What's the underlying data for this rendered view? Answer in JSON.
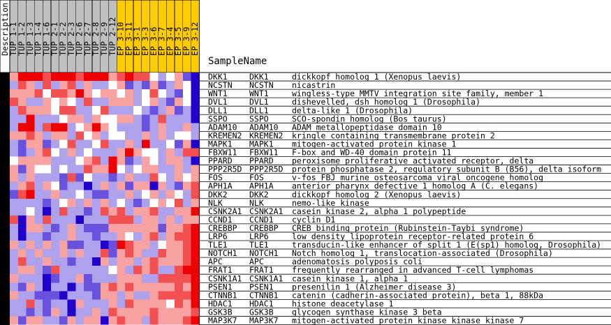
{
  "colors": {
    "header_group_1": "#c0c0c0",
    "header_group_2": "#ffcc00",
    "description_bar": "#000000",
    "grid_line": "#000000",
    "low": "#2200cc",
    "high": "#ee0000",
    "mid": "#ffffff"
  },
  "header": {
    "description_label": "Description",
    "sample_name_label": "SampleName"
  },
  "chart_data": {
    "type": "heatmap",
    "columns": [
      {
        "label": "TUP 1-1",
        "group": 1
      },
      {
        "label": "TUP 1-2",
        "group": 1
      },
      {
        "label": "TUP 1-3",
        "group": 1
      },
      {
        "label": "TUP 1-4",
        "group": 1
      },
      {
        "label": "TUP 1-6",
        "group": 1
      },
      {
        "label": "TUP 2-1",
        "group": 1
      },
      {
        "label": "TUP 2-2",
        "group": 1
      },
      {
        "label": "TUP 2-3",
        "group": 1
      },
      {
        "label": "TUP 2-6",
        "group": 1
      },
      {
        "label": "TUP 2-7",
        "group": 1
      },
      {
        "label": "TUP 2-8",
        "group": 1
      },
      {
        "label": "TUP 2-9",
        "group": 1
      },
      {
        "label": "TUP 2-12",
        "group": 1
      },
      {
        "label": "EP 3-10",
        "group": 2
      },
      {
        "label": "EP 3-11",
        "group": 2
      },
      {
        "label": "EP 3-1",
        "group": 2
      },
      {
        "label": "EP 3-3",
        "group": 2
      },
      {
        "label": "EP 3-6",
        "group": 2
      },
      {
        "label": "EP 3-7",
        "group": 2
      },
      {
        "label": "EP 3-4",
        "group": 2
      },
      {
        "label": "EP 3-5",
        "group": 2
      },
      {
        "label": "EP 3-9",
        "group": 2
      },
      {
        "label": "EP 3-12",
        "group": 2
      }
    ],
    "rows": [
      {
        "id": "DKK1",
        "symbol": "DKK1",
        "desc": "dickkopf homolog 1 (Xenopus laevis)"
      },
      {
        "id": "NCSTN",
        "symbol": "NCSTN",
        "desc": "nicastrin"
      },
      {
        "id": "WNT1",
        "symbol": "WNT1",
        "desc": "wingless-type MMTV integration site family, member 1"
      },
      {
        "id": "DVL1",
        "symbol": "DVL1",
        "desc": "dishevelled, dsh homolog 1 (Drosophila)"
      },
      {
        "id": "DLL1",
        "symbol": "DLL1",
        "desc": "delta-like 1 (Drosophila)"
      },
      {
        "id": "SSPO",
        "symbol": "SSPO",
        "desc": "SCO-spondin homolog (Bos taurus)"
      },
      {
        "id": "ADAM10",
        "symbol": "ADAM10",
        "desc": "ADAM metallopeptidase domain 10"
      },
      {
        "id": "KREMEN2",
        "symbol": "KREMEN2",
        "desc": "kringle containing transmembrane protein 2"
      },
      {
        "id": "MAPK1",
        "symbol": "MAPK1",
        "desc": "mitogen-activated protein kinase 1"
      },
      {
        "id": "FBXW11",
        "symbol": "FBXW11",
        "desc": "F-box and WD-40 domain protein 11"
      },
      {
        "id": "PPARD",
        "symbol": "PPARD",
        "desc": "peroxisome proliferative activated receptor, delta"
      },
      {
        "id": "PPP2R5D",
        "symbol": "PPP2R5D",
        "desc": "protein phosphatase 2, regulatory subunit B (B56), delta isoform"
      },
      {
        "id": "FOS",
        "symbol": "FOS",
        "desc": "v-fos FBJ murine osteosarcoma viral oncogene homolog"
      },
      {
        "id": "APH1A",
        "symbol": "APH1A",
        "desc": "anterior pharynx defective 1 homolog A (C. elegans)"
      },
      {
        "id": "DKK2",
        "symbol": "DKK2",
        "desc": "dickkopf homolog 2 (Xenopus laevis)"
      },
      {
        "id": "NLK",
        "symbol": "NLK",
        "desc": "nemo-like kinase"
      },
      {
        "id": "CSNK2A1",
        "symbol": "CSNK2A1",
        "desc": "casein kinase 2, alpha 1 polypeptide"
      },
      {
        "id": "CCND1",
        "symbol": "CCND1",
        "desc": "cyclin D1"
      },
      {
        "id": "CREBBP",
        "symbol": "CREBBP",
        "desc": "CREB binding protein (Rubinstein-Taybi syndrome)"
      },
      {
        "id": "LRP6",
        "symbol": "LRP6",
        "desc": "low density lipoprotein receptor-related protein 6"
      },
      {
        "id": "TLE1",
        "symbol": "TLE1",
        "desc": "transducin-like enhancer of split 1 (E(sp1) homolog, Drosophila)"
      },
      {
        "id": "NOTCH1",
        "symbol": "NOTCH1",
        "desc": "Notch homolog 1, translocation-associated (Drosophila)"
      },
      {
        "id": "APC",
        "symbol": "APC",
        "desc": "adenomatosis polyposis coli"
      },
      {
        "id": "FRAT1",
        "symbol": "FRAT1",
        "desc": "frequently rearranged in advanced T-cell lymphomas"
      },
      {
        "id": "CSNK1A1",
        "symbol": "CSNK1A1",
        "desc": "casein kinase 1, alpha 1"
      },
      {
        "id": "PSEN1",
        "symbol": "PSEN1",
        "desc": "presenilin 1 (Alzheimer disease 3)"
      },
      {
        "id": "CTNNB1",
        "symbol": "CTNNB1",
        "desc": "catenin (cadherin-associated protein), beta 1, 88kDa"
      },
      {
        "id": "HDAC1",
        "symbol": "HDAC1",
        "desc": "histone deacetylase 1"
      },
      {
        "id": "GSK3B",
        "symbol": "GSK3B",
        "desc": "glycogen synthase kinase 3 beta"
      },
      {
        "id": "MAP3K7",
        "symbol": "MAP3K7",
        "desc": "mitogen-activated protein kinase kinase kinase 7"
      }
    ],
    "value_range": [
      -3,
      3
    ],
    "values": [
      [
        1,
        3,
        3,
        3,
        2,
        3,
        3,
        3,
        2,
        3,
        3,
        3,
        1,
        2,
        3,
        2,
        2,
        0,
        -1,
        0,
        1,
        -2,
        -3
      ],
      [
        -1,
        2,
        1,
        -1,
        2,
        -1,
        1,
        2,
        -1,
        1,
        -1,
        -1,
        0,
        1,
        -2,
        -1,
        -2,
        1,
        -2,
        -1,
        1,
        0,
        -3
      ],
      [
        1,
        1,
        1,
        2,
        0,
        2,
        2,
        1,
        3,
        1,
        0,
        1,
        1,
        0,
        1,
        -1,
        0,
        2,
        0,
        -1,
        -2,
        0,
        -3
      ],
      [
        2,
        1,
        -1,
        -1,
        1,
        0,
        1,
        0,
        -1,
        2,
        -1,
        -1,
        1,
        1,
        1,
        -1,
        0,
        1,
        -1,
        -2,
        1,
        0,
        -3
      ],
      [
        -1,
        2,
        1,
        1,
        1,
        0,
        2,
        2,
        -1,
        -1,
        0,
        2,
        -1,
        -1,
        -1,
        0,
        -1,
        -2,
        -1,
        1,
        -2,
        -1,
        -3
      ],
      [
        -1,
        -1,
        3,
        -1,
        -1,
        -1,
        0,
        1,
        1,
        -1,
        1,
        0,
        0,
        1,
        1,
        -1,
        -2,
        -1,
        2,
        -1,
        -1,
        -1,
        -3
      ],
      [
        -1,
        3,
        3,
        -1,
        2,
        3,
        3,
        -1,
        0,
        1,
        3,
        1,
        0,
        -1,
        -1,
        -1,
        -2,
        -1,
        1,
        -1,
        -1,
        1,
        -1
      ],
      [
        1,
        1,
        2,
        1,
        -1,
        1,
        1,
        -1,
        2,
        0,
        1,
        -1,
        0,
        0,
        -1,
        -1,
        1,
        -1,
        1,
        -1,
        0,
        0,
        -1
      ],
      [
        -1,
        -2,
        1,
        1,
        -2,
        -1,
        0,
        2,
        -1,
        -1,
        0,
        2,
        -1,
        -1,
        1,
        -1,
        3,
        -1,
        -1,
        0,
        -2,
        1,
        -3
      ],
      [
        -1,
        -2,
        -1,
        1,
        2,
        0,
        -1,
        1,
        -1,
        0,
        -1,
        -1,
        -1,
        1,
        3,
        1,
        0,
        0,
        -1,
        1,
        -1,
        2,
        2
      ],
      [
        0,
        1,
        1,
        1,
        1,
        -1,
        -1,
        -1,
        0,
        1,
        2,
        -1,
        3,
        1,
        -2,
        -1,
        1,
        0,
        -1,
        1,
        1,
        -1,
        -3
      ],
      [
        1,
        -2,
        1,
        0,
        0,
        -1,
        0,
        -1,
        -1,
        2,
        1,
        1,
        3,
        0,
        -1,
        0,
        1,
        1,
        -1,
        -1,
        1,
        -1,
        1
      ],
      [
        1,
        -1,
        1,
        -1,
        -1,
        -1,
        -2,
        2,
        -2,
        0,
        -1,
        -1,
        -2,
        -1,
        1,
        -1,
        -1,
        2,
        0,
        -1,
        1,
        0,
        1
      ],
      [
        -1,
        1,
        2,
        -1,
        1,
        0,
        -2,
        -1,
        -1,
        -3,
        -1,
        1,
        -1,
        1,
        -2,
        1,
        1,
        -3,
        1,
        -1,
        -2,
        1,
        2
      ],
      [
        -2,
        2,
        3,
        -1,
        -1,
        1,
        -1,
        -1,
        0,
        -1,
        -2,
        -2,
        -1,
        -1,
        1,
        -1,
        0,
        1,
        -1,
        1,
        0,
        -1,
        2
      ],
      [
        -1,
        -1,
        -1,
        -1,
        -2,
        -1,
        0,
        1,
        -1,
        1,
        -1,
        1,
        -1,
        0,
        -1,
        -2,
        -1,
        0,
        1,
        0,
        2,
        -1,
        1
      ],
      [
        -1,
        -1,
        0,
        -1,
        -3,
        -1,
        2,
        -1,
        -1,
        -2,
        -1,
        2,
        1,
        2,
        -1,
        1,
        1,
        2,
        -1,
        -1,
        1,
        1,
        3
      ],
      [
        2,
        -3,
        1,
        -1,
        2,
        -1,
        -1,
        -1,
        -3,
        -1,
        -1,
        -1,
        2,
        2,
        2,
        -1,
        1,
        1,
        -1,
        1,
        -1,
        1,
        1
      ],
      [
        -1,
        -3,
        1,
        1,
        -1,
        -2,
        -1,
        1,
        -1,
        -2,
        -2,
        -2,
        1,
        1,
        1,
        1,
        1,
        1,
        -2,
        1,
        1,
        2,
        3
      ],
      [
        -1,
        -3,
        -1,
        -1,
        -2,
        -1,
        -1,
        1,
        -1,
        -1,
        -2,
        -1,
        -1,
        1,
        0,
        -1,
        1,
        2,
        -1,
        1,
        2,
        2,
        3
      ],
      [
        1,
        -1,
        1,
        -1,
        1,
        -1,
        1,
        -2,
        -2,
        -1,
        -1,
        -3,
        -2,
        3,
        2,
        1,
        1,
        -1,
        0,
        1,
        1,
        2,
        3
      ],
      [
        -1,
        1,
        -1,
        1,
        -1,
        -1,
        1,
        -1,
        1,
        -1,
        -1,
        2,
        -2,
        1,
        2,
        1,
        -1,
        -1,
        2,
        1,
        1,
        2,
        3
      ],
      [
        -1,
        2,
        -1,
        -1,
        1,
        -1,
        -1,
        -2,
        -1,
        -1,
        -3,
        1,
        -1,
        1,
        1,
        -1,
        1,
        2,
        1,
        1,
        1,
        2,
        3
      ],
      [
        -1,
        1,
        1,
        -1,
        -2,
        2,
        -1,
        -1,
        -1,
        -1,
        -1,
        -1,
        0,
        1,
        -1,
        2,
        1,
        2,
        -1,
        -1,
        2,
        3,
        3
      ],
      [
        1,
        -1,
        -1,
        -1,
        -3,
        -2,
        -1,
        -1,
        1,
        -2,
        -1,
        -1,
        -1,
        1,
        1,
        1,
        -1,
        -1,
        2,
        2,
        2,
        2,
        3
      ],
      [
        -1,
        -2,
        1,
        -1,
        -3,
        -1,
        -1,
        -3,
        -1,
        -2,
        -2,
        1,
        2,
        1,
        2,
        1,
        1,
        1,
        1,
        1,
        2,
        1,
        3
      ],
      [
        1,
        -1,
        -1,
        -2,
        -2,
        -2,
        -3,
        -1,
        -1,
        -1,
        -2,
        1,
        1,
        -1,
        1,
        -1,
        -1,
        1,
        2,
        2,
        2,
        2,
        3
      ],
      [
        -1,
        -1,
        2,
        -1,
        -2,
        -1,
        -1,
        -3,
        1,
        -1,
        -1,
        -1,
        1,
        -1,
        2,
        1,
        1,
        1,
        1,
        0,
        2,
        1,
        3
      ],
      [
        -1,
        -1,
        -2,
        -1,
        -2,
        1,
        -1,
        -3,
        -1,
        -1,
        1,
        -1,
        2,
        1,
        1,
        1,
        1,
        2,
        1,
        1,
        1,
        1,
        2
      ],
      [
        1,
        -2,
        1,
        1,
        -1,
        -1,
        -2,
        1,
        -1,
        1,
        1,
        -3,
        1,
        2,
        1,
        1,
        -1,
        2,
        1,
        1,
        1,
        2,
        3
      ]
    ]
  }
}
